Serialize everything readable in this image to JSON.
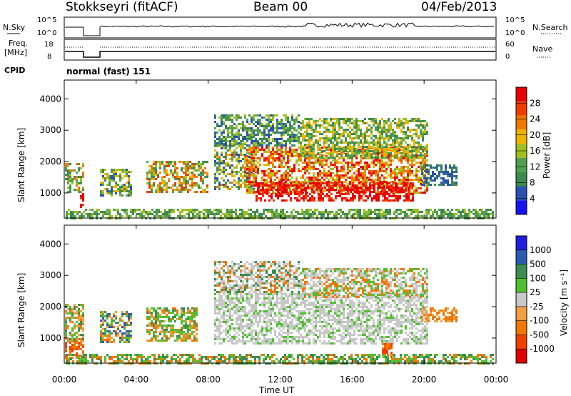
{
  "header": {
    "station": "Stokkseyri (fitACF)",
    "beam": "Beam 00",
    "date": "04/Feb/2013"
  },
  "panels": {
    "nsky_label": "N.Sky",
    "nsky_ticks": [
      "10^5",
      "10^0"
    ],
    "nsearch_label": "N.Search",
    "nsearch_ticks": [
      "10^5",
      "10^0"
    ],
    "freq_label_1": "Freq.",
    "freq_label_2": "[MHz]",
    "freq_ticks": [
      "18",
      "8"
    ],
    "nave_label": "Nave",
    "nave_ticks": [
      "60",
      "0"
    ],
    "cpid_label": "CPID",
    "cpid_text": "normal (fast) 151"
  },
  "colors": {
    "power": [
      "#1414f0",
      "#2a50b0",
      "#3c8a50",
      "#50a050",
      "#a0c020",
      "#f0b400",
      "#f07800",
      "#f03c00",
      "#e60000"
    ],
    "velocity": [
      "#e00000",
      "#f04000",
      "#f07800",
      "#f0a040",
      "#c8c8c8",
      "#50c030",
      "#3c8c50",
      "#2c5ab0",
      "#1e1ee0"
    ]
  },
  "chart_data": [
    {
      "type": "heatmap",
      "name": "power",
      "ylabel": "Slant Range [km]",
      "yticks": [
        "4000",
        "3000",
        "2000",
        "1000"
      ],
      "ylim": [
        200,
        4600
      ],
      "colorbar_label": "Power [dB]",
      "colorbar_ticks": [
        "28",
        "24",
        "20",
        "16",
        "12",
        "8",
        "4"
      ],
      "clim": [
        0,
        32
      ]
    },
    {
      "type": "heatmap",
      "name": "velocity",
      "ylabel": "Slant Range [km]",
      "yticks": [
        "4000",
        "3000",
        "2000",
        "1000"
      ],
      "ylim": [
        200,
        4600
      ],
      "colorbar_label": "Velocity [m s⁻¹]",
      "colorbar_ticks": [
        "1000",
        "500",
        "100",
        "25",
        "-25",
        "-100",
        "-500",
        "-1000"
      ]
    }
  ],
  "xaxis": {
    "label": "Time UT",
    "ticks": [
      "00:00",
      "04:00",
      "08:00",
      "12:00",
      "16:00",
      "20:00",
      "00:00"
    ]
  }
}
